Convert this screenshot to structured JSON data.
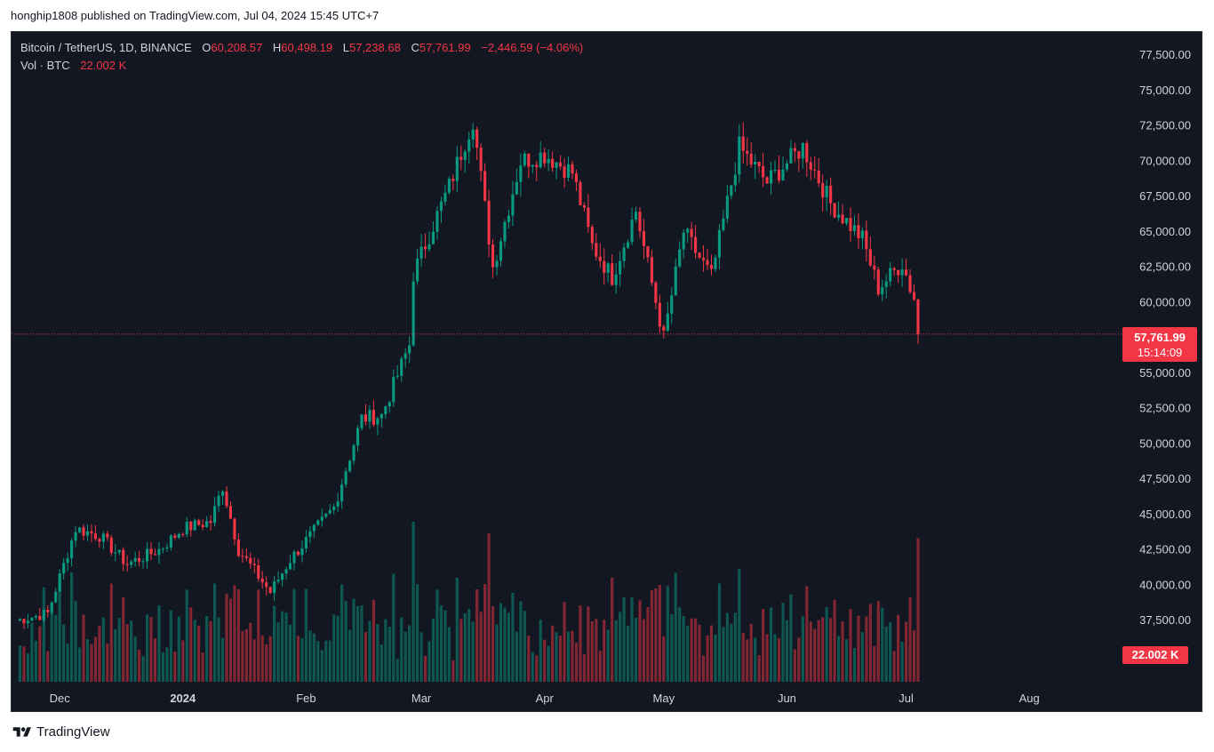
{
  "publish_line": "honghip1808 published on TradingView.com, Jul 04, 2024 15:45 UTC+7",
  "legend": {
    "symbol": "Bitcoin / TetherUS, 1D, BINANCE",
    "o_label": "O",
    "o_value": "60,208.57",
    "h_label": "H",
    "h_value": "60,498.19",
    "l_label": "L",
    "l_value": "57,238.68",
    "c_label": "C",
    "c_value": "57,761.99",
    "change": "−2,446.59 (−4.06%)",
    "vol_label": "Vol · BTC",
    "vol_value": "22.002 K"
  },
  "price_tag": {
    "price": "57,761.99",
    "countdown": "15:14:09"
  },
  "volume_tag": "22.002 K",
  "footer": {
    "brand": "TradingView",
    "logo_icon": "tradingview-logo-icon"
  },
  "colors": {
    "background": "#131722",
    "up": "#089981",
    "down": "#f23645",
    "text": "#d1d4dc"
  },
  "chart_data": {
    "type": "candlestick",
    "symbol": "Bitcoin / TetherUS",
    "interval": "1D",
    "exchange": "BINANCE",
    "y_ticks": [
      "77,500.00",
      "75,000.00",
      "72,500.00",
      "70,000.00",
      "67,500.00",
      "65,000.00",
      "62,500.00",
      "60,000.00",
      "55,000.00",
      "52,500.00",
      "50,000.00",
      "47,500.00",
      "45,000.00",
      "42,500.00",
      "40,000.00",
      "37,500.00"
    ],
    "ylim": [
      35000,
      80000
    ],
    "x_ticks": [
      "Dec",
      "2024",
      "Feb",
      "Mar",
      "Apr",
      "May",
      "Jun",
      "Jul",
      "Aug"
    ],
    "date_range": [
      "2023-11-20",
      "2024-07-04"
    ],
    "last_price": 57761.99,
    "series": [
      {
        "name": "price",
        "anchor_dates": [
          "2023-11-20",
          "2023-11-28",
          "2023-12-05",
          "2023-12-11",
          "2023-12-18",
          "2023-12-26",
          "2024-01-01",
          "2024-01-08",
          "2024-01-11",
          "2024-01-15",
          "2024-01-23",
          "2024-01-28",
          "2024-02-08",
          "2024-02-15",
          "2024-02-20",
          "2024-02-27",
          "2024-02-28",
          "2024-03-04",
          "2024-03-08",
          "2024-03-14",
          "2024-03-19",
          "2024-03-26",
          "2024-04-01",
          "2024-04-08",
          "2024-04-13",
          "2024-04-18",
          "2024-04-24",
          "2024-05-01",
          "2024-05-06",
          "2024-05-13",
          "2024-05-20",
          "2024-05-27",
          "2024-06-05",
          "2024-06-12",
          "2024-06-20",
          "2024-06-24",
          "2024-06-30",
          "2024-07-03",
          "2024-07-04"
        ],
        "anchor_closes": [
          37500,
          38000,
          44000,
          43500,
          41500,
          42500,
          44000,
          44500,
          47000,
          42500,
          39500,
          41800,
          45500,
          51800,
          52000,
          57000,
          62000,
          65500,
          68200,
          73000,
          62500,
          70000,
          70500,
          69200,
          64000,
          61800,
          66500,
          57500,
          65000,
          61800,
          71000,
          68500,
          71000,
          67000,
          64500,
          61000,
          62800,
          60208,
          57762
        ]
      },
      {
        "name": "volume",
        "unit": "K BTC",
        "last": 22.002
      }
    ]
  }
}
